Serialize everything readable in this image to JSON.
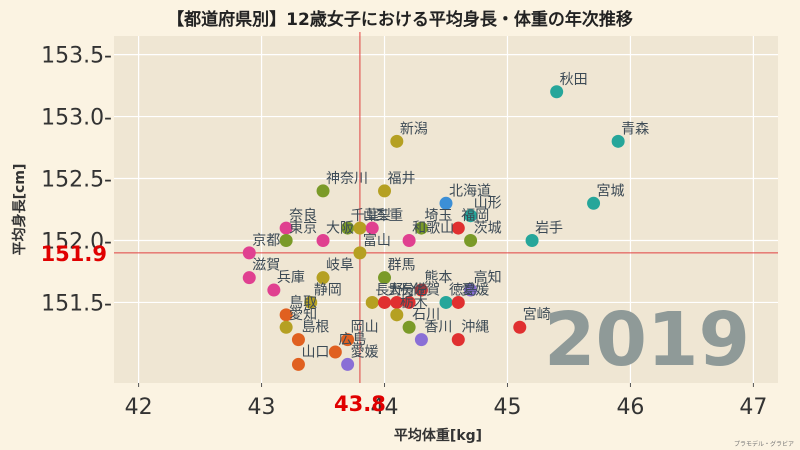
{
  "colors": {
    "background": "#fbf3e2",
    "plot_background": "#efe6d3",
    "grid": "#ffffff",
    "reference_line": "#e04040",
    "reference_label": "#e00000",
    "year_label": "#8f9a98",
    "label_text": "#3c4a55"
  },
  "chart_data": {
    "type": "scatter",
    "title": "【都道府県別】12歳女子における平均身長・体重の年次推移",
    "xlabel": "平均体重[kg]",
    "ylabel": "平均身長[cm]",
    "xlim": [
      41.8,
      47.2
    ],
    "ylim": [
      150.85,
      153.65
    ],
    "xticks": [
      42,
      43,
      44,
      45,
      46,
      47
    ],
    "yticks": [
      151.5,
      152.0,
      152.5,
      153.0,
      153.5
    ],
    "xtick_labels": [
      "42",
      "43",
      "44",
      "45",
      "46",
      "47"
    ],
    "ytick_labels": [
      "151.5-",
      "152.0-",
      "152.5-",
      "153.0-",
      "153.5-"
    ],
    "grid": true,
    "reference": {
      "x": 43.8,
      "y": 151.9,
      "x_label": "43.8",
      "y_label": "151.9"
    },
    "year": "2019",
    "credit": "プラモデル・グラビア",
    "points": [
      {
        "label": "秋田",
        "x": 45.4,
        "y": 153.2,
        "color": "#26a69a"
      },
      {
        "label": "青森",
        "x": 45.9,
        "y": 152.8,
        "color": "#26a69a"
      },
      {
        "label": "新潟",
        "x": 44.1,
        "y": 152.8,
        "color": "#b5a022"
      },
      {
        "label": "宮城",
        "x": 45.7,
        "y": 152.3,
        "color": "#26a69a"
      },
      {
        "label": "神奈川",
        "x": 43.5,
        "y": 152.4,
        "color": "#7a9a28"
      },
      {
        "label": "福井",
        "x": 44.0,
        "y": 152.4,
        "color": "#b5a022"
      },
      {
        "label": "北海道",
        "x": 44.5,
        "y": 152.3,
        "color": "#3c8fd6"
      },
      {
        "label": "山形",
        "x": 44.7,
        "y": 152.2,
        "color": "#26a69a"
      },
      {
        "label": "奈良",
        "x": 43.2,
        "y": 152.1,
        "color": "#e04090"
      },
      {
        "label": "千葉",
        "x": 43.7,
        "y": 152.1,
        "color": "#7a9a28"
      },
      {
        "label": "山梨",
        "x": 43.8,
        "y": 152.1,
        "color": "#b5a022"
      },
      {
        "label": "三重",
        "x": 43.9,
        "y": 152.1,
        "color": "#e04090"
      },
      {
        "label": "埼玉",
        "x": 44.3,
        "y": 152.1,
        "color": "#7a9a28"
      },
      {
        "label": "福岡",
        "x": 44.6,
        "y": 152.1,
        "color": "#e03030"
      },
      {
        "label": "東京",
        "x": 43.2,
        "y": 152.0,
        "color": "#7a9a28"
      },
      {
        "label": "大阪",
        "x": 43.5,
        "y": 152.0,
        "color": "#e04090"
      },
      {
        "label": "和歌山",
        "x": 44.2,
        "y": 152.0,
        "color": "#e04090"
      },
      {
        "label": "茨城",
        "x": 44.7,
        "y": 152.0,
        "color": "#7a9a28"
      },
      {
        "label": "岩手",
        "x": 45.2,
        "y": 152.0,
        "color": "#26a69a"
      },
      {
        "label": "京都",
        "x": 42.9,
        "y": 151.9,
        "color": "#e04090"
      },
      {
        "label": "富山",
        "x": 43.8,
        "y": 151.9,
        "color": "#b5a022"
      },
      {
        "label": "滋賀",
        "x": 42.9,
        "y": 151.7,
        "color": "#e04090"
      },
      {
        "label": "岐阜",
        "x": 43.5,
        "y": 151.7,
        "color": "#b5a022"
      },
      {
        "label": "群馬",
        "x": 44.0,
        "y": 151.7,
        "color": "#7a9a28"
      },
      {
        "label": "兵庫",
        "x": 43.1,
        "y": 151.6,
        "color": "#e04090"
      },
      {
        "label": "熊本",
        "x": 44.3,
        "y": 151.6,
        "color": "#e03030"
      },
      {
        "label": "高知",
        "x": 44.7,
        "y": 151.6,
        "color": "#8a6fd6"
      },
      {
        "label": "静岡",
        "x": 43.4,
        "y": 151.5,
        "color": "#b5a022"
      },
      {
        "label": "長野",
        "x": 43.9,
        "y": 151.5,
        "color": "#b5a022"
      },
      {
        "label": "大分",
        "x": 44.0,
        "y": 151.5,
        "color": "#e03030"
      },
      {
        "label": "長崎",
        "x": 44.1,
        "y": 151.5,
        "color": "#e03030"
      },
      {
        "label": "佐賀",
        "x": 44.2,
        "y": 151.5,
        "color": "#e03030"
      },
      {
        "label": "徳島",
        "x": 44.5,
        "y": 151.5,
        "color": "#26a69a"
      },
      {
        "label": "愛媛",
        "x": 44.6,
        "y": 151.5,
        "color": "#e03030"
      },
      {
        "label": "鳥取",
        "x": 43.2,
        "y": 151.4,
        "color": "#e06020"
      },
      {
        "label": "栃木",
        "x": 44.1,
        "y": 151.4,
        "color": "#b5a022"
      },
      {
        "label": "愛知",
        "x": 43.2,
        "y": 151.3,
        "color": "#b5a022"
      },
      {
        "label": "石川",
        "x": 44.2,
        "y": 151.3,
        "color": "#7a9a28"
      },
      {
        "label": "宮崎",
        "x": 45.1,
        "y": 151.3,
        "color": "#e03030"
      },
      {
        "label": "島根",
        "x": 43.3,
        "y": 151.2,
        "color": "#e06020"
      },
      {
        "label": "岡山",
        "x": 43.7,
        "y": 151.2,
        "color": "#e06020"
      },
      {
        "label": "香川",
        "x": 44.3,
        "y": 151.2,
        "color": "#8a6fd6"
      },
      {
        "label": "沖縄",
        "x": 44.6,
        "y": 151.2,
        "color": "#e03030"
      },
      {
        "label": "広島",
        "x": 43.6,
        "y": 151.1,
        "color": "#e06020"
      },
      {
        "label": "山口",
        "x": 43.3,
        "y": 151.0,
        "color": "#e06020"
      },
      {
        "label": "愛媛",
        "x": 43.7,
        "y": 151.0,
        "color": "#8a6fd6"
      }
    ]
  }
}
